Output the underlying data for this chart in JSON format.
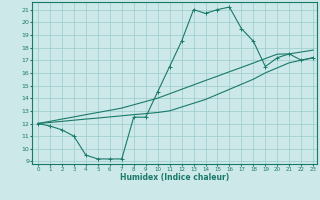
{
  "xlabel": "Humidex (Indice chaleur)",
  "bg_color": "#cce8e8",
  "grid_color": "#99cccc",
  "line_color": "#1a7a6a",
  "xlim": [
    -0.5,
    23.3
  ],
  "ylim": [
    8.8,
    21.6
  ],
  "yticks": [
    9,
    10,
    11,
    12,
    13,
    14,
    15,
    16,
    17,
    18,
    19,
    20,
    21
  ],
  "xticks": [
    0,
    1,
    2,
    3,
    4,
    5,
    6,
    7,
    8,
    9,
    10,
    11,
    12,
    13,
    14,
    15,
    16,
    17,
    18,
    19,
    20,
    21,
    22,
    23
  ],
  "line1_x": [
    0,
    1,
    2,
    3,
    4,
    5,
    6,
    7,
    8,
    9,
    10,
    11,
    12,
    13,
    14,
    15,
    16,
    17,
    18,
    19,
    20,
    21,
    22,
    23
  ],
  "line1_y": [
    12,
    11.8,
    11.5,
    11.0,
    9.5,
    9.2,
    9.2,
    9.2,
    12.5,
    12.5,
    14.5,
    16.5,
    18.5,
    21.0,
    20.7,
    21.0,
    21.2,
    19.5,
    18.5,
    16.5,
    17.2,
    17.5,
    17.0,
    17.2
  ],
  "line2_x": [
    0,
    1,
    2,
    3,
    4,
    5,
    6,
    7,
    8,
    9,
    10,
    11,
    12,
    13,
    14,
    15,
    16,
    17,
    18,
    19,
    20,
    21,
    22,
    23
  ],
  "line2_y": [
    12,
    12.08,
    12.17,
    12.26,
    12.35,
    12.43,
    12.52,
    12.61,
    12.7,
    12.78,
    12.87,
    13.0,
    13.3,
    13.6,
    13.9,
    14.3,
    14.7,
    15.1,
    15.5,
    16.0,
    16.4,
    16.8,
    17.0,
    17.2
  ],
  "line3_x": [
    0,
    1,
    2,
    3,
    4,
    5,
    6,
    7,
    8,
    9,
    10,
    11,
    12,
    13,
    14,
    15,
    16,
    17,
    18,
    19,
    20,
    21,
    22,
    23
  ],
  "line3_y": [
    12,
    12.17,
    12.35,
    12.52,
    12.7,
    12.87,
    13.04,
    13.22,
    13.48,
    13.74,
    14.0,
    14.35,
    14.7,
    15.05,
    15.4,
    15.74,
    16.09,
    16.43,
    16.78,
    17.13,
    17.48,
    17.5,
    17.65,
    17.8
  ]
}
